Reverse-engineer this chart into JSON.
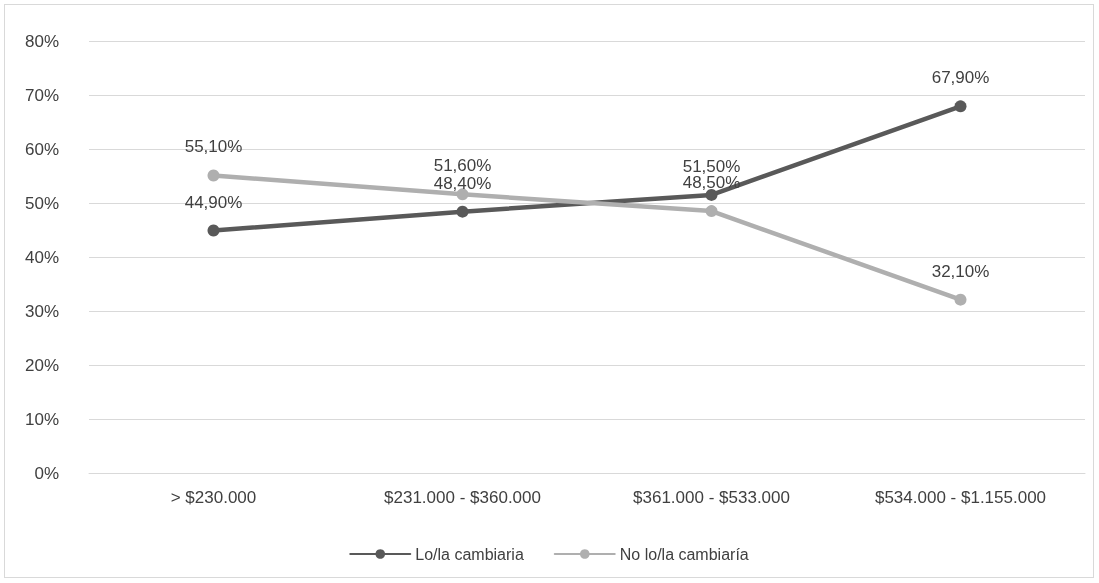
{
  "chart_data": {
    "type": "line",
    "categories": [
      "> $230.000",
      "$231.000 - $360.000",
      "$361.000 - $533.000",
      "$534.000 - $1.155.000"
    ],
    "series": [
      {
        "name": "Lo/la cambiaria",
        "color": "#595959",
        "values": [
          44.9,
          48.4,
          51.5,
          67.9
        ],
        "value_labels": [
          "44,90%",
          "48,40%",
          "51,50%",
          "67,90%"
        ]
      },
      {
        "name": "No lo/la cambiaría",
        "color": "#afafaf",
        "values": [
          55.1,
          51.6,
          48.5,
          32.1
        ],
        "value_labels": [
          "55,10%",
          "51,60%",
          "48,50%",
          "32,10%"
        ]
      }
    ],
    "ylim": [
      0,
      80
    ],
    "yticks": [
      {
        "value": 0,
        "label": "0%"
      },
      {
        "value": 10,
        "label": "10%"
      },
      {
        "value": 20,
        "label": "20%"
      },
      {
        "value": 30,
        "label": "30%"
      },
      {
        "value": 40,
        "label": "40%"
      },
      {
        "value": 50,
        "label": "50%"
      },
      {
        "value": 60,
        "label": "60%"
      },
      {
        "value": 70,
        "label": "70%"
      },
      {
        "value": 80,
        "label": "80%"
      }
    ],
    "grid": "y",
    "legend": "bottom",
    "marker": "circle",
    "line_style": "solid"
  }
}
